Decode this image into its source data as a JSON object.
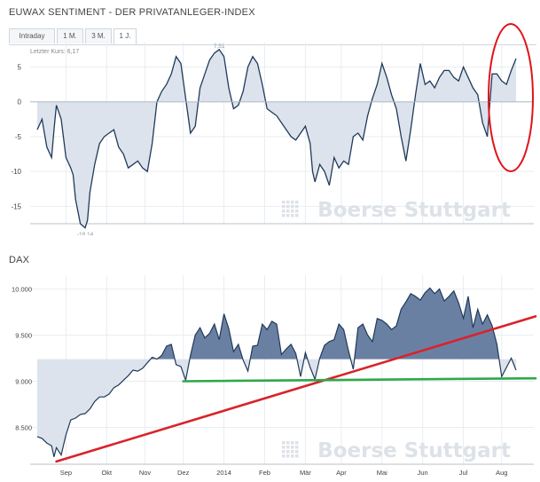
{
  "sentiment": {
    "title": "EUWAX SENTIMENT - DER PRIVATANLEGER-INDEX",
    "tabs": [
      {
        "label": "Intraday",
        "active": false
      },
      {
        "label": "1 M.",
        "active": false
      },
      {
        "label": "3 M.",
        "active": false
      },
      {
        "label": "1 J.",
        "active": true
      }
    ],
    "last_price_label": "Letzter Kurs: 6,17",
    "watermark": "Boerse Stuttgart",
    "colors": {
      "line": "#1f3a5a",
      "fill": "#dde3ec",
      "grid": "#e9edf1",
      "axis": "#7a8894",
      "annotation": "#e0141b"
    }
  },
  "dax": {
    "title": "DAX",
    "watermark": "Boerse Stuttgart",
    "colors": {
      "line": "#1f3a5a",
      "fill_above": "#6a80a3",
      "fill_below": "#dde3ec",
      "trend_red": "#d8232a",
      "support_green": "#2fa84a"
    }
  },
  "chart_data": [
    {
      "type": "area",
      "title": "EUWAX SENTIMENT - DER PRIVATANLEGER-INDEX",
      "ylim": [
        -17.5,
        8.5
      ],
      "yticks": [
        5,
        0,
        -5,
        -10,
        -15
      ],
      "ytick_labels": [
        "5",
        "0",
        "-5",
        "-10",
        "-15"
      ],
      "baseline": 0,
      "last_value_label": "Letzter Kurs: 6,17",
      "point_labels": [
        {
          "text": "7,51",
          "x": 0.38,
          "y": 7.51
        },
        {
          "text": "-18,14",
          "x": 0.1,
          "y": -18.14
        }
      ],
      "x": [
        0.0,
        0.01,
        0.02,
        0.03,
        0.035,
        0.04,
        0.05,
        0.06,
        0.07,
        0.075,
        0.08,
        0.09,
        0.1,
        0.105,
        0.11,
        0.12,
        0.13,
        0.14,
        0.15,
        0.16,
        0.17,
        0.18,
        0.19,
        0.2,
        0.21,
        0.22,
        0.23,
        0.24,
        0.25,
        0.26,
        0.27,
        0.28,
        0.29,
        0.3,
        0.31,
        0.315,
        0.32,
        0.33,
        0.34,
        0.35,
        0.36,
        0.37,
        0.38,
        0.39,
        0.4,
        0.41,
        0.42,
        0.43,
        0.44,
        0.45,
        0.46,
        0.47,
        0.48,
        0.49,
        0.5,
        0.51,
        0.52,
        0.53,
        0.54,
        0.55,
        0.56,
        0.57,
        0.575,
        0.58,
        0.59,
        0.6,
        0.61,
        0.62,
        0.63,
        0.64,
        0.65,
        0.66,
        0.67,
        0.68,
        0.69,
        0.7,
        0.71,
        0.72,
        0.73,
        0.74,
        0.75,
        0.76,
        0.77,
        0.78,
        0.79,
        0.8,
        0.81,
        0.82,
        0.83,
        0.84,
        0.85,
        0.86,
        0.87,
        0.88,
        0.89,
        0.9,
        0.91,
        0.92,
        0.93,
        0.94,
        0.95,
        0.96,
        0.97,
        0.98,
        0.99,
        1.0
      ],
      "values": [
        -4.0,
        -2.5,
        -6.5,
        -8.0,
        -4.0,
        -0.5,
        -2.5,
        -8.0,
        -9.5,
        -10.5,
        -14.0,
        -17.5,
        -18.1,
        -17.0,
        -13.0,
        -9.0,
        -6.0,
        -5.0,
        -4.5,
        -4.0,
        -6.5,
        -7.5,
        -9.5,
        -9.0,
        -8.5,
        -9.5,
        -10.0,
        -6.0,
        0.0,
        1.5,
        2.5,
        4.0,
        6.5,
        5.5,
        0.5,
        -2.0,
        -4.5,
        -3.5,
        2.0,
        4.0,
        6.0,
        7.0,
        7.5,
        6.5,
        2.0,
        -1.0,
        -0.5,
        1.5,
        5.0,
        6.5,
        5.5,
        2.5,
        -1.0,
        -1.5,
        -2.0,
        -3.0,
        -4.0,
        -5.0,
        -5.5,
        -4.5,
        -3.5,
        -6.0,
        -10.0,
        -11.5,
        -9.0,
        -10.0,
        -12.0,
        -8.0,
        -9.5,
        -8.5,
        -9.0,
        -5.0,
        -4.5,
        -5.5,
        -2.0,
        0.5,
        2.5,
        5.5,
        3.5,
        1.0,
        -1.0,
        -5.0,
        -8.5,
        -4.0,
        1.0,
        5.5,
        2.5,
        3.0,
        2.0,
        3.5,
        4.5,
        4.5,
        3.5,
        3.0,
        5.0,
        3.5,
        2.0,
        1.0,
        -3.0,
        -5.0,
        4.0,
        4.0,
        3.0,
        2.5,
        4.5,
        6.2
      ]
    },
    {
      "type": "area",
      "title": "DAX",
      "ylim": [
        8100,
        10150
      ],
      "yticks": [
        10000,
        9500,
        9000,
        8500
      ],
      "ytick_labels": [
        "10.000",
        "9.500",
        "9.000",
        "8.500"
      ],
      "baseline": 9240,
      "categories": [
        "Sep",
        "Okt",
        "Nov",
        "Dez",
        "2014",
        "Feb",
        "Mär",
        "Apr",
        "Mai",
        "Jun",
        "Jul",
        "Aug"
      ],
      "category_positions": [
        0.06,
        0.145,
        0.225,
        0.305,
        0.39,
        0.475,
        0.56,
        0.635,
        0.72,
        0.805,
        0.89,
        0.97
      ],
      "x": [
        0.0,
        0.01,
        0.02,
        0.03,
        0.035,
        0.04,
        0.05,
        0.06,
        0.07,
        0.08,
        0.09,
        0.1,
        0.11,
        0.12,
        0.13,
        0.14,
        0.15,
        0.16,
        0.17,
        0.18,
        0.19,
        0.2,
        0.21,
        0.22,
        0.23,
        0.24,
        0.25,
        0.26,
        0.27,
        0.28,
        0.29,
        0.3,
        0.31,
        0.32,
        0.33,
        0.34,
        0.35,
        0.36,
        0.37,
        0.38,
        0.39,
        0.4,
        0.41,
        0.42,
        0.43,
        0.44,
        0.45,
        0.46,
        0.47,
        0.48,
        0.49,
        0.5,
        0.51,
        0.52,
        0.53,
        0.54,
        0.55,
        0.56,
        0.57,
        0.58,
        0.59,
        0.6,
        0.61,
        0.62,
        0.63,
        0.64,
        0.65,
        0.66,
        0.67,
        0.68,
        0.69,
        0.7,
        0.71,
        0.72,
        0.73,
        0.74,
        0.75,
        0.76,
        0.77,
        0.78,
        0.79,
        0.8,
        0.81,
        0.82,
        0.83,
        0.84,
        0.85,
        0.86,
        0.87,
        0.88,
        0.89,
        0.9,
        0.91,
        0.92,
        0.93,
        0.94,
        0.95,
        0.96,
        0.97,
        0.98,
        0.99,
        1.0
      ],
      "values": [
        8400,
        8380,
        8330,
        8300,
        8180,
        8280,
        8200,
        8420,
        8580,
        8600,
        8640,
        8650,
        8700,
        8780,
        8830,
        8830,
        8860,
        8930,
        8960,
        9010,
        9060,
        9120,
        9110,
        9140,
        9200,
        9260,
        9240,
        9280,
        9380,
        9400,
        9180,
        9160,
        9010,
        9280,
        9500,
        9580,
        9470,
        9520,
        9620,
        9450,
        9730,
        9570,
        9320,
        9400,
        9230,
        9110,
        9380,
        9390,
        9620,
        9560,
        9650,
        9620,
        9290,
        9350,
        9400,
        9300,
        9050,
        9310,
        9150,
        9020,
        9250,
        9390,
        9430,
        9450,
        9620,
        9560,
        9330,
        9130,
        9580,
        9620,
        9500,
        9430,
        9680,
        9660,
        9620,
        9560,
        9600,
        9780,
        9860,
        9950,
        9920,
        9880,
        9960,
        10010,
        9950,
        10000,
        9870,
        9920,
        9980,
        9850,
        9680,
        9920,
        9580,
        9780,
        9620,
        9720,
        9600,
        9400,
        9050,
        9150,
        9250,
        9120
      ],
      "trend_lines": [
        {
          "label": "",
          "color": "#d8232a",
          "points": [
            {
              "x": 0.04,
              "y": 8130
            },
            {
              "x": 1.0,
              "y": 9640
            }
          ]
        },
        {
          "label": "",
          "color": "#2fa84a",
          "points": [
            {
              "x": 0.305,
              "y": 9000
            },
            {
              "x": 1.0,
              "y": 9030
            }
          ]
        }
      ]
    }
  ]
}
